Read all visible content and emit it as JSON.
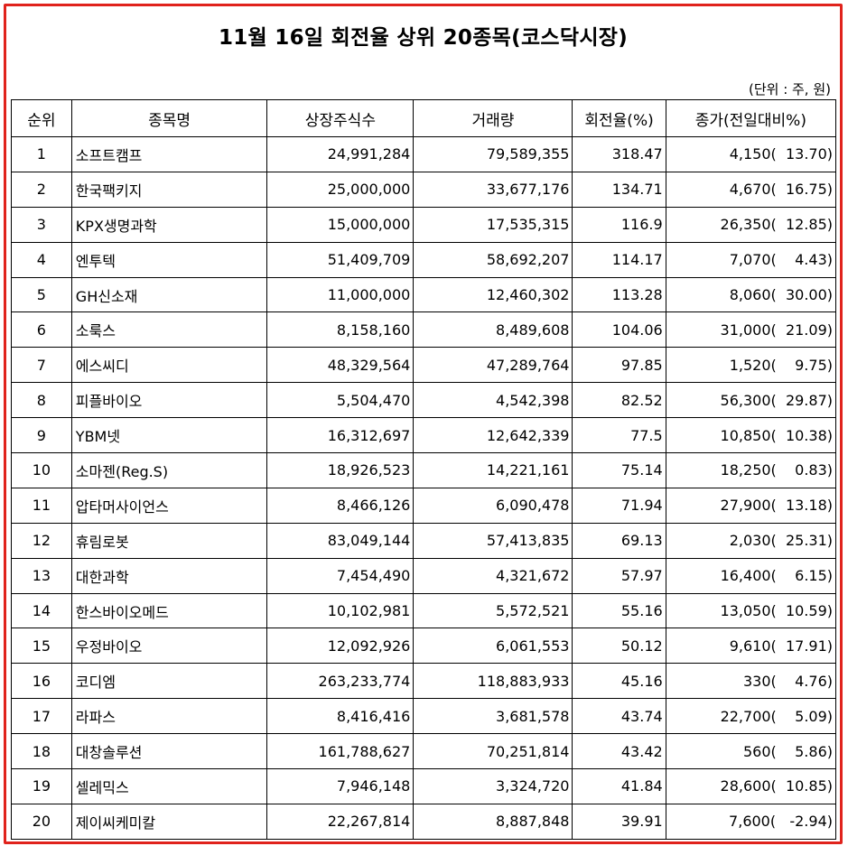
{
  "title": "11월 16일 회전율 상위 20종목(코스닥시장)",
  "unit_note": "(단위 : 주, 원)",
  "headers": [
    "순위",
    "종목명",
    "상장주식수",
    "거래량",
    "회전율(%)",
    "종가(전일대비%)"
  ],
  "rows": [
    {
      "rank": "1",
      "name": "소프트캠프",
      "shares": "24,991,284",
      "volume": "79,589,355",
      "turnover": "318.47",
      "price": "4,150(  13.70)"
    },
    {
      "rank": "2",
      "name": "한국팩키지",
      "shares": "25,000,000",
      "volume": "33,677,176",
      "turnover": "134.71",
      "price": "4,670(  16.75)"
    },
    {
      "rank": "3",
      "name": "KPX생명과학",
      "shares": "15,000,000",
      "volume": "17,535,315",
      "turnover": "116.9",
      "price": "26,350(  12.85)"
    },
    {
      "rank": "4",
      "name": "엔투텍",
      "shares": "51,409,709",
      "volume": "58,692,207",
      "turnover": "114.17",
      "price": "7,070(    4.43)"
    },
    {
      "rank": "5",
      "name": "GH신소재",
      "shares": "11,000,000",
      "volume": "12,460,302",
      "turnover": "113.28",
      "price": "8,060(  30.00)"
    },
    {
      "rank": "6",
      "name": "소룩스",
      "shares": "8,158,160",
      "volume": "8,489,608",
      "turnover": "104.06",
      "price": "31,000(  21.09)"
    },
    {
      "rank": "7",
      "name": "에스씨디",
      "shares": "48,329,564",
      "volume": "47,289,764",
      "turnover": "97.85",
      "price": "1,520(    9.75)"
    },
    {
      "rank": "8",
      "name": "피플바이오",
      "shares": "5,504,470",
      "volume": "4,542,398",
      "turnover": "82.52",
      "price": "56,300(  29.87)"
    },
    {
      "rank": "9",
      "name": "YBM넷",
      "shares": "16,312,697",
      "volume": "12,642,339",
      "turnover": "77.5",
      "price": "10,850(  10.38)"
    },
    {
      "rank": "10",
      "name": "소마젠(Reg.S)",
      "shares": "18,926,523",
      "volume": "14,221,161",
      "turnover": "75.14",
      "price": "18,250(    0.83)"
    },
    {
      "rank": "11",
      "name": "압타머사이언스",
      "shares": "8,466,126",
      "volume": "6,090,478",
      "turnover": "71.94",
      "price": "27,900(  13.18)"
    },
    {
      "rank": "12",
      "name": "휴림로봇",
      "shares": "83,049,144",
      "volume": "57,413,835",
      "turnover": "69.13",
      "price": "2,030(  25.31)"
    },
    {
      "rank": "13",
      "name": "대한과학",
      "shares": "7,454,490",
      "volume": "4,321,672",
      "turnover": "57.97",
      "price": "16,400(    6.15)"
    },
    {
      "rank": "14",
      "name": "한스바이오메드",
      "shares": "10,102,981",
      "volume": "5,572,521",
      "turnover": "55.16",
      "price": "13,050(  10.59)"
    },
    {
      "rank": "15",
      "name": "우정바이오",
      "shares": "12,092,926",
      "volume": "6,061,553",
      "turnover": "50.12",
      "price": "9,610(  17.91)"
    },
    {
      "rank": "16",
      "name": "코디엠",
      "shares": "263,233,774",
      "volume": "118,883,933",
      "turnover": "45.16",
      "price": "330(    4.76)"
    },
    {
      "rank": "17",
      "name": "라파스",
      "shares": "8,416,416",
      "volume": "3,681,578",
      "turnover": "43.74",
      "price": "22,700(    5.09)"
    },
    {
      "rank": "18",
      "name": "대창솔루션",
      "shares": "161,788,627",
      "volume": "70,251,814",
      "turnover": "43.42",
      "price": "560(    5.86)"
    },
    {
      "rank": "19",
      "name": "셀레믹스",
      "shares": "7,946,148",
      "volume": "3,324,720",
      "turnover": "41.84",
      "price": "28,600(  10.85)"
    },
    {
      "rank": "20",
      "name": "제이씨케미칼",
      "shares": "22,267,814",
      "volume": "8,887,848",
      "turnover": "39.91",
      "price": "7,600(   -2.94)"
    }
  ]
}
